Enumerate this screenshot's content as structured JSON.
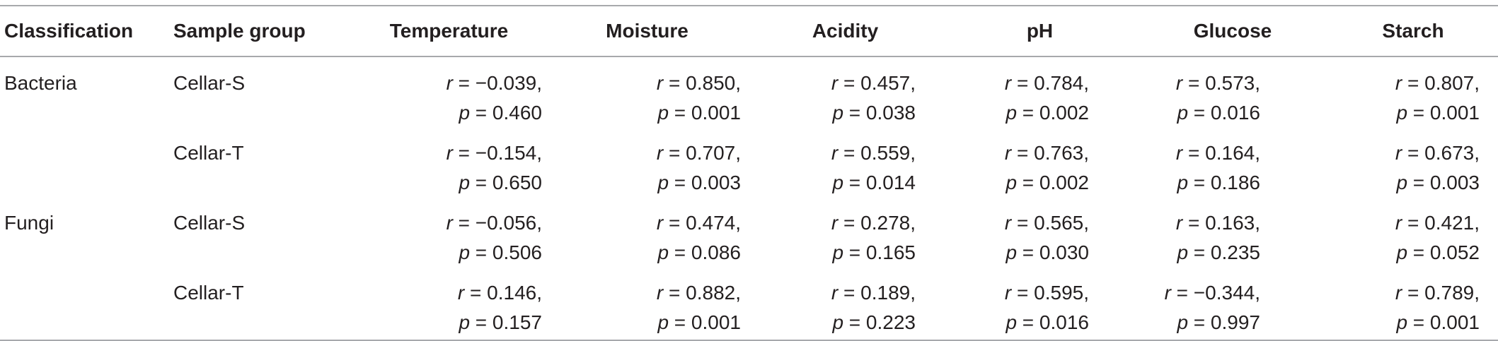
{
  "headers": [
    "Classification",
    "Sample group",
    "Temperature",
    "Moisture",
    "Acidity",
    "pH",
    "Glucose",
    "Starch"
  ],
  "rows": [
    {
      "classification": "Bacteria",
      "group": "Cellar-S",
      "cells": [
        {
          "r": "r = −0.039,",
          "p": "p = 0.460"
        },
        {
          "r": "r = 0.850,",
          "p": "p = 0.001"
        },
        {
          "r": "r = 0.457,",
          "p": "p = 0.038"
        },
        {
          "r": "r = 0.784,",
          "p": "p = 0.002"
        },
        {
          "r": "r = 0.573,",
          "p": "p = 0.016"
        },
        {
          "r": "r = 0.807,",
          "p": "p = 0.001"
        }
      ]
    },
    {
      "classification": "",
      "group": "Cellar-T",
      "cells": [
        {
          "r": "r = −0.154,",
          "p": "p = 0.650"
        },
        {
          "r": "r = 0.707,",
          "p": "p = 0.003"
        },
        {
          "r": "r = 0.559,",
          "p": "p = 0.014"
        },
        {
          "r": "r = 0.763,",
          "p": "p = 0.002"
        },
        {
          "r": "r = 0.164,",
          "p": "p = 0.186"
        },
        {
          "r": "r = 0.673,",
          "p": "p = 0.003"
        }
      ]
    },
    {
      "classification": "Fungi",
      "group": "Cellar-S",
      "cells": [
        {
          "r": "r = −0.056,",
          "p": "p = 0.506"
        },
        {
          "r": "r = 0.474,",
          "p": "p = 0.086"
        },
        {
          "r": "r = 0.278,",
          "p": "p = 0.165"
        },
        {
          "r": "r = 0.565,",
          "p": "p = 0.030"
        },
        {
          "r": "r = 0.163,",
          "p": "p = 0.235"
        },
        {
          "r": "r = 0.421,",
          "p": "p = 0.052"
        }
      ]
    },
    {
      "classification": "",
      "group": "Cellar-T",
      "cells": [
        {
          "r": "r = 0.146,",
          "p": "p = 0.157"
        },
        {
          "r": "r = 0.882,",
          "p": "p = 0.001"
        },
        {
          "r": "r = 0.189,",
          "p": "p = 0.223"
        },
        {
          "r": "r = 0.595,",
          "p": "p = 0.016"
        },
        {
          "r": "r = −0.344,",
          "p": "p = 0.997"
        },
        {
          "r": "r = 0.789,",
          "p": "p = 0.001"
        }
      ]
    }
  ]
}
